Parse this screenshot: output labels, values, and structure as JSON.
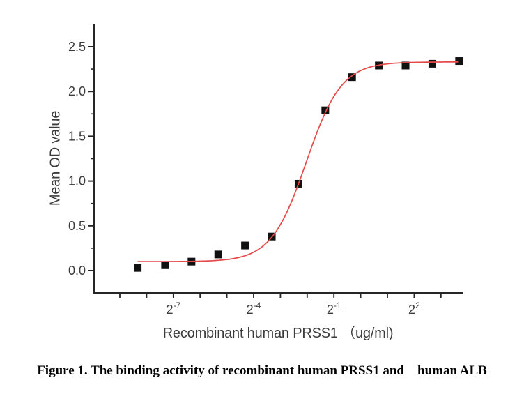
{
  "figure": {
    "caption": "Figure 1. The binding activity of recombinant human PRSS1 and    human ALB"
  },
  "chart_data": {
    "type": "scatter",
    "title": "",
    "xlabel": "Recombinant human PRSS1 （ug/ml)",
    "ylabel": "Mean OD value",
    "x_scale": "log2",
    "x_units": "ug/ml",
    "x": [
      0.0031,
      0.0063,
      0.0125,
      0.025,
      0.05,
      0.1,
      0.2,
      0.4,
      0.8,
      1.6,
      3.2,
      6.4,
      12.8
    ],
    "y": [
      0.03,
      0.06,
      0.1,
      0.18,
      0.28,
      0.38,
      0.97,
      1.79,
      2.16,
      2.29,
      2.29,
      2.31,
      2.34
    ],
    "fit_curve": {
      "model": "4PL",
      "bottom": 0.1,
      "top": 2.33,
      "ec50": 0.245,
      "hill": 2.2,
      "color": "#e64a4a"
    },
    "marker": {
      "shape": "square",
      "size": 11,
      "color": "#111111"
    },
    "x_ticks": {
      "labeled": [
        {
          "base": "2",
          "sup": "-7",
          "exp": -7
        },
        {
          "base": "2",
          "sup": "-4",
          "exp": -4
        },
        {
          "base": "2",
          "sup": "-1",
          "exp": -1
        },
        {
          "base": "2",
          "sup": "2",
          "exp": 2
        }
      ],
      "minor_exponents": [
        -9,
        -8,
        -7,
        -6,
        -5,
        -4,
        -3,
        -2,
        -1,
        0,
        1,
        2,
        3
      ]
    },
    "y_ticks": {
      "labels": [
        "0.0",
        "0.5",
        "1.0",
        "1.5",
        "2.0",
        "2.5"
      ],
      "values": [
        0,
        0.5,
        1.0,
        1.5,
        2.0,
        2.5
      ],
      "minor_values": [
        0.25,
        0.75,
        1.25,
        1.75,
        2.25
      ]
    },
    "xlim_exp": [
      -10,
      3.85
    ],
    "ylim": [
      -0.25,
      2.72
    ],
    "grid": false,
    "legend": null,
    "axis_color": "#262626",
    "tick_label_color": "#3b3b3b"
  }
}
